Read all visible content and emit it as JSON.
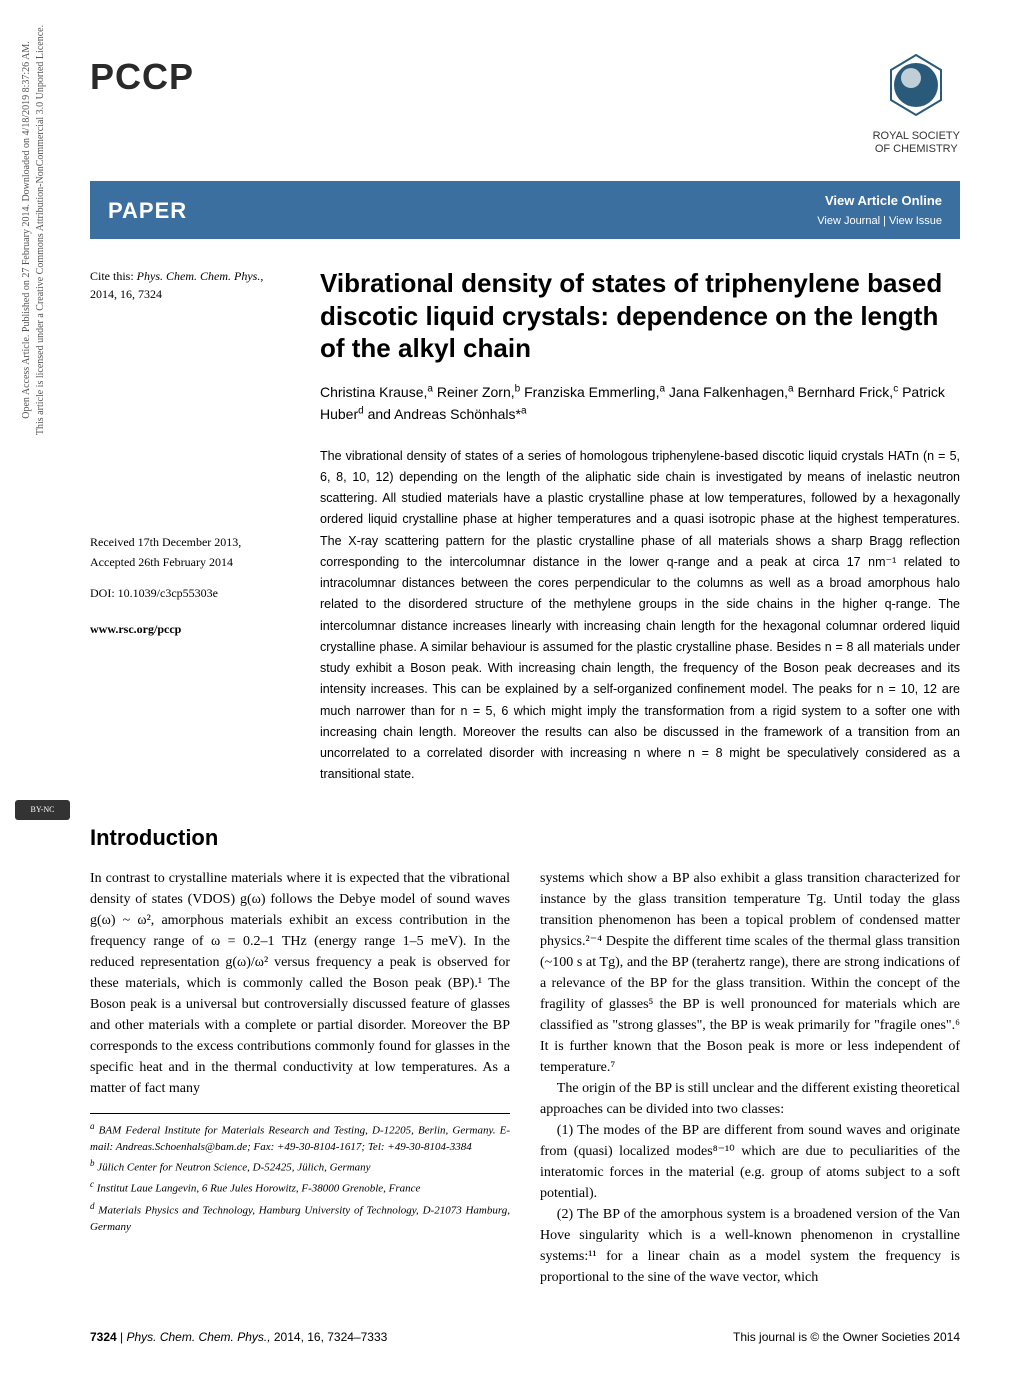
{
  "sidebar": {
    "line1": "Open Access Article. Published on 27 February 2014. Downloaded on 4/18/2019 8:37:26 AM.",
    "line2": "This article is licensed under a Creative Commons Attribution-NonCommercial 3.0 Unported Licence.",
    "cc_badge": "BY-NC"
  },
  "header": {
    "journal": "PCCP",
    "rsc_line1": "ROYAL SOCIETY",
    "rsc_line2": "OF CHEMISTRY"
  },
  "paper_bar": {
    "label": "PAPER",
    "view_online": "View Article Online",
    "view_journal": "View Journal | View Issue"
  },
  "cite": {
    "label": "Cite this: ",
    "journal": "Phys. Chem. Chem. Phys.,",
    "ref": "2014, 16, 7324"
  },
  "received": {
    "line1": "Received 17th December 2013,",
    "line2": "Accepted 26th February 2014"
  },
  "doi": "DOI: 10.1039/c3cp55303e",
  "url": "www.rsc.org/pccp",
  "title": "Vibrational density of states of triphenylene based discotic liquid crystals: dependence on the length of the alkyl chain",
  "authors_html": "Christina Krause,<sup>a</sup> Reiner Zorn,<sup>b</sup> Franziska Emmerling,<sup>a</sup> Jana Falkenhagen,<sup>a</sup> Bernhard Frick,<sup>c</sup> Patrick Huber<sup>d</sup> and Andreas Schönhals*<sup>a</sup>",
  "abstract": "The vibrational density of states of a series of homologous triphenylene-based discotic liquid crystals HATn (n = 5, 6, 8, 10, 12) depending on the length of the aliphatic side chain is investigated by means of inelastic neutron scattering. All studied materials have a plastic crystalline phase at low temperatures, followed by a hexagonally ordered liquid crystalline phase at higher temperatures and a quasi isotropic phase at the highest temperatures. The X-ray scattering pattern for the plastic crystalline phase of all materials shows a sharp Bragg reflection corresponding to the intercolumnar distance in the lower q-range and a peak at circa 17 nm⁻¹ related to intracolumnar distances between the cores perpendicular to the columns as well as a broad amorphous halo related to the disordered structure of the methylene groups in the side chains in the higher q-range. The intercolumnar distance increases linearly with increasing chain length for the hexagonal columnar ordered liquid crystalline phase. A similar behaviour is assumed for the plastic crystalline phase. Besides n = 8 all materials under study exhibit a Boson peak. With increasing chain length, the frequency of the Boson peak decreases and its intensity increases. This can be explained by a self-organized confinement model. The peaks for n = 10, 12 are much narrower than for n = 5, 6 which might imply the transformation from a rigid system to a softer one with increasing chain length. Moreover the results can also be discussed in the framework of a transition from an uncorrelated to a correlated disorder with increasing n where n = 8 might be speculatively considered as a transitional state.",
  "intro_heading": "Introduction",
  "body": {
    "left_p1": "In contrast to crystalline materials where it is expected that the vibrational density of states (VDOS) g(ω) follows the Debye model of sound waves g(ω) ~ ω², amorphous materials exhibit an excess contribution in the frequency range of ω = 0.2–1 THz (energy range 1–5 meV). In the reduced representation g(ω)/ω² versus frequency a peak is observed for these materials, which is commonly called the Boson peak (BP).¹ The Boson peak is a universal but controversially discussed feature of glasses and other materials with a complete or partial disorder. Moreover the BP corresponds to the excess contributions commonly found for glasses in the specific heat and in the thermal conductivity at low temperatures. As a matter of fact many",
    "right_p1": "systems which show a BP also exhibit a glass transition characterized for instance by the glass transition temperature Tg. Until today the glass transition phenomenon has been a topical problem of condensed matter physics.²⁻⁴ Despite the different time scales of the thermal glass transition (~100 s at Tg), and the BP (terahertz range), there are strong indications of a relevance of the BP for the glass transition. Within the concept of the fragility of glasses⁵ the BP is well pronounced for materials which are classified as \"strong glasses\", the BP is weak primarily for \"fragile ones\".⁶ It is further known that the Boson peak is more or less independent of temperature.⁷",
    "right_p2": "The origin of the BP is still unclear and the different existing theoretical approaches can be divided into two classes:",
    "right_p3": "(1) The modes of the BP are different from sound waves and originate from (quasi) localized modes⁸⁻¹⁰ which are due to peculiarities of the interatomic forces in the material (e.g. group of atoms subject to a soft potential).",
    "right_p4": "(2) The BP of the amorphous system is a broadened version of the Van Hove singularity which is a well-known phenomenon in crystalline systems:¹¹ for a linear chain as a model system the frequency is proportional to the sine of the wave vector, which"
  },
  "affiliations": {
    "a": "BAM Federal Institute for Materials Research and Testing, D-12205, Berlin, Germany. E-mail: Andreas.Schoenhals@bam.de; Fax: +49-30-8104-1617; Tel: +49-30-8104-3384",
    "b": "Jülich Center for Neutron Science, D-52425, Jülich, Germany",
    "c": "Institut Laue Langevin, 6 Rue Jules Horowitz, F-38000 Grenoble, France",
    "d": "Materials Physics and Technology, Hamburg University of Technology, D-21073 Hamburg, Germany"
  },
  "footer": {
    "page": "7324",
    "sep": " | ",
    "journal_abbr": "Phys. Chem. Chem. Phys.,",
    "year_vol": " 2014, 16, 7324–7333",
    "right": "This journal is © the Owner Societies 2014"
  },
  "colors": {
    "bar_bg": "#3b6fa0",
    "text": "#000000"
  }
}
